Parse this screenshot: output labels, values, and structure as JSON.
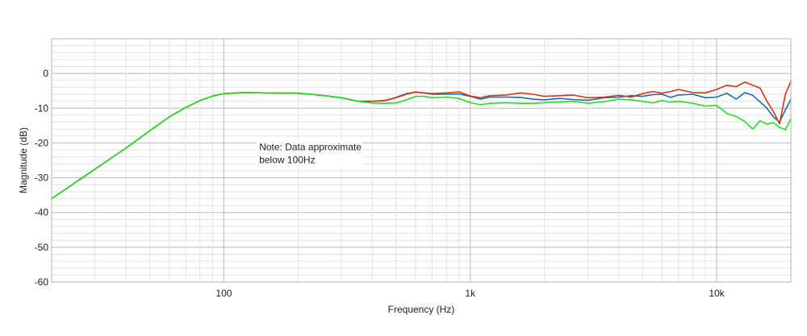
{
  "chart_data": {
    "type": "line",
    "title": "",
    "xlabel": "Frequency (Hz)",
    "ylabel": "Magnitude (dB)",
    "xscale": "log",
    "xlim": [
      20,
      20000
    ],
    "ylim": [
      -60,
      10
    ],
    "grid": true,
    "legend": "none",
    "x_tick_labels": [
      {
        "value": 100,
        "label": "100"
      },
      {
        "value": 1000,
        "label": "1k"
      },
      {
        "value": 10000,
        "label": "10k"
      }
    ],
    "y_tick_labels": [
      {
        "value": 0,
        "label": "0"
      },
      {
        "value": -10,
        "label": "-10"
      },
      {
        "value": -20,
        "label": "-20"
      },
      {
        "value": -30,
        "label": "-30"
      },
      {
        "value": -40,
        "label": "-40"
      },
      {
        "value": -50,
        "label": "-50"
      },
      {
        "value": -60,
        "label": "-60"
      }
    ],
    "annotation": {
      "lines": [
        "Note: Data approximate",
        "below 100Hz"
      ],
      "x": 135,
      "y": -23
    },
    "series": [
      {
        "color": "#1a6ea8",
        "x": [
          20,
          30,
          40,
          50,
          60,
          70,
          80,
          90,
          100,
          120,
          150,
          200,
          250,
          300,
          350,
          400,
          450,
          500,
          550,
          600,
          650,
          700,
          800,
          900,
          1000,
          1100,
          1200,
          1400,
          1600,
          1800,
          2000,
          2300,
          2600,
          3000,
          3500,
          4000,
          4500,
          5000,
          5500,
          6000,
          6500,
          7000,
          8000,
          9000,
          10000,
          11000,
          12000,
          13000,
          14000,
          15000,
          16000,
          17000,
          18000,
          19000,
          20000
        ],
        "y": [
          -36,
          -27.5,
          -21.5,
          -16.5,
          -12.5,
          -9.8,
          -7.8,
          -6.5,
          -5.8,
          -5.5,
          -5.6,
          -5.7,
          -6.3,
          -7,
          -8,
          -8,
          -7.8,
          -6.9,
          -5.8,
          -5.4,
          -5.6,
          -6,
          -6,
          -5.9,
          -6.6,
          -7.4,
          -6.8,
          -6.8,
          -6.9,
          -7.4,
          -7.6,
          -7.2,
          -7.5,
          -7.7,
          -7,
          -6.8,
          -6.4,
          -6.6,
          -6.1,
          -6,
          -6.9,
          -6.2,
          -6,
          -7,
          -6.8,
          -5.7,
          -7.4,
          -5.5,
          -6.3,
          -8.2,
          -10,
          -12.5,
          -14,
          -10.5,
          -7.5
        ]
      },
      {
        "color": "#d83516",
        "x": [
          20,
          30,
          40,
          50,
          60,
          70,
          80,
          90,
          100,
          120,
          150,
          200,
          250,
          300,
          350,
          400,
          450,
          500,
          550,
          600,
          650,
          700,
          800,
          900,
          1000,
          1100,
          1200,
          1400,
          1600,
          1800,
          2000,
          2300,
          2600,
          3000,
          3500,
          4000,
          4500,
          5000,
          5500,
          6000,
          6500,
          7000,
          8000,
          9000,
          10000,
          11000,
          12000,
          13000,
          14000,
          15000,
          16000,
          17000,
          18000,
          19000,
          20000
        ],
        "y": [
          -36,
          -27.5,
          -21.5,
          -16.5,
          -12.5,
          -9.8,
          -7.8,
          -6.5,
          -5.8,
          -5.5,
          -5.6,
          -5.7,
          -6.3,
          -7,
          -8,
          -8,
          -7.8,
          -7,
          -6,
          -5.3,
          -5.6,
          -5.8,
          -5.6,
          -5.3,
          -6.5,
          -7,
          -6.4,
          -6.2,
          -5.6,
          -6,
          -6.6,
          -6.4,
          -6.2,
          -7,
          -6.8,
          -6.3,
          -6.8,
          -5.8,
          -5.2,
          -5.7,
          -5.2,
          -4.6,
          -5.5,
          -5.6,
          -4.6,
          -3.4,
          -3.8,
          -2.5,
          -3.4,
          -4.2,
          -8,
          -11,
          -14.5,
          -6,
          -2.3
        ]
      },
      {
        "color": "#22e022",
        "x": [
          20,
          30,
          40,
          50,
          60,
          70,
          80,
          90,
          100,
          120,
          150,
          200,
          250,
          300,
          350,
          400,
          450,
          500,
          550,
          600,
          650,
          700,
          800,
          900,
          1000,
          1100,
          1200,
          1400,
          1600,
          1800,
          2000,
          2300,
          2600,
          3000,
          3500,
          4000,
          4500,
          5000,
          5500,
          6000,
          6500,
          7000,
          8000,
          9000,
          10000,
          11000,
          12000,
          13000,
          14000,
          15000,
          16000,
          17000,
          18000,
          19000,
          20000
        ],
        "y": [
          -36,
          -27.5,
          -21.5,
          -16.5,
          -12.5,
          -9.8,
          -7.8,
          -6.5,
          -5.8,
          -5.5,
          -5.6,
          -5.7,
          -6.3,
          -7,
          -8,
          -8.5,
          -8.6,
          -8.5,
          -7.6,
          -6.6,
          -6.6,
          -7,
          -6.8,
          -7.2,
          -8.4,
          -9,
          -8.6,
          -8.4,
          -8.6,
          -8.6,
          -8.4,
          -8.2,
          -8,
          -8.6,
          -8.1,
          -7.4,
          -7.6,
          -8,
          -8.5,
          -7.8,
          -8.2,
          -8,
          -8.6,
          -9.4,
          -9.2,
          -11.5,
          -12.4,
          -13.8,
          -16,
          -13.6,
          -14.6,
          -14.2,
          -15.5,
          -16.2,
          -13
        ]
      }
    ]
  }
}
